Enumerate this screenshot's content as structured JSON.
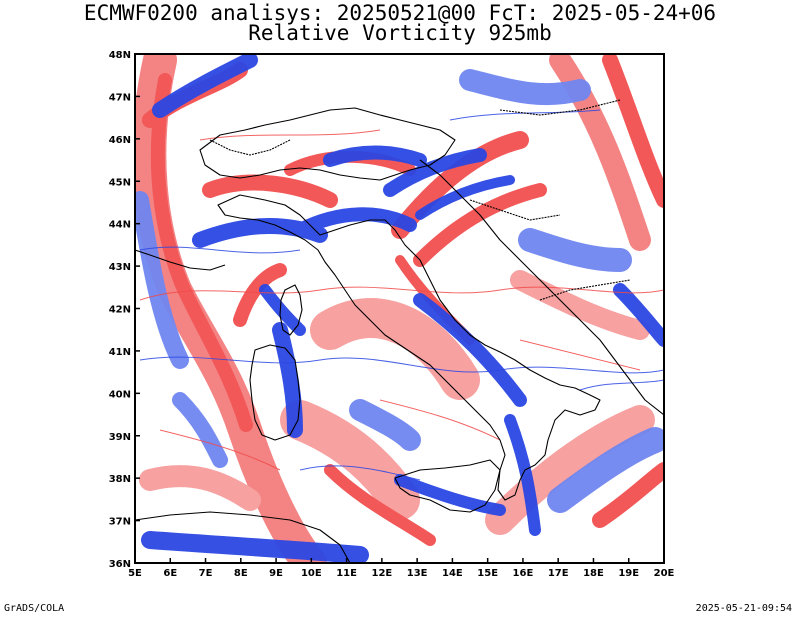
{
  "title": {
    "line1": "ECMWF0200 analisys: 20250521@00 FcT: 2025-05-24+06",
    "line2": "Relative Vorticity 925mb"
  },
  "map": {
    "projection": "lat-lon",
    "lon_range": [
      5,
      20
    ],
    "lat_range": [
      36,
      48
    ],
    "x_tick_labels": [
      "5E",
      "6E",
      "7E",
      "8E",
      "9E",
      "10E",
      "11E",
      "12E",
      "13E",
      "14E",
      "15E",
      "16E",
      "17E",
      "18E",
      "19E",
      "20E"
    ],
    "y_tick_labels": [
      "36N",
      "37N",
      "38N",
      "39N",
      "40N",
      "41N",
      "42N",
      "43N",
      "44N",
      "45N",
      "46N",
      "47N",
      "48N"
    ],
    "colors": {
      "positive_vorticity": "#2b47e3",
      "positive_vorticity_light": "#6f86f0",
      "negative_vorticity": "#f14a4a",
      "negative_vorticity_light": "#f79a9a",
      "coastline": "#000000",
      "border": "#000000"
    }
  },
  "footer": {
    "left": "GrADS/COLA",
    "right": "2025-05-21-09:54"
  }
}
